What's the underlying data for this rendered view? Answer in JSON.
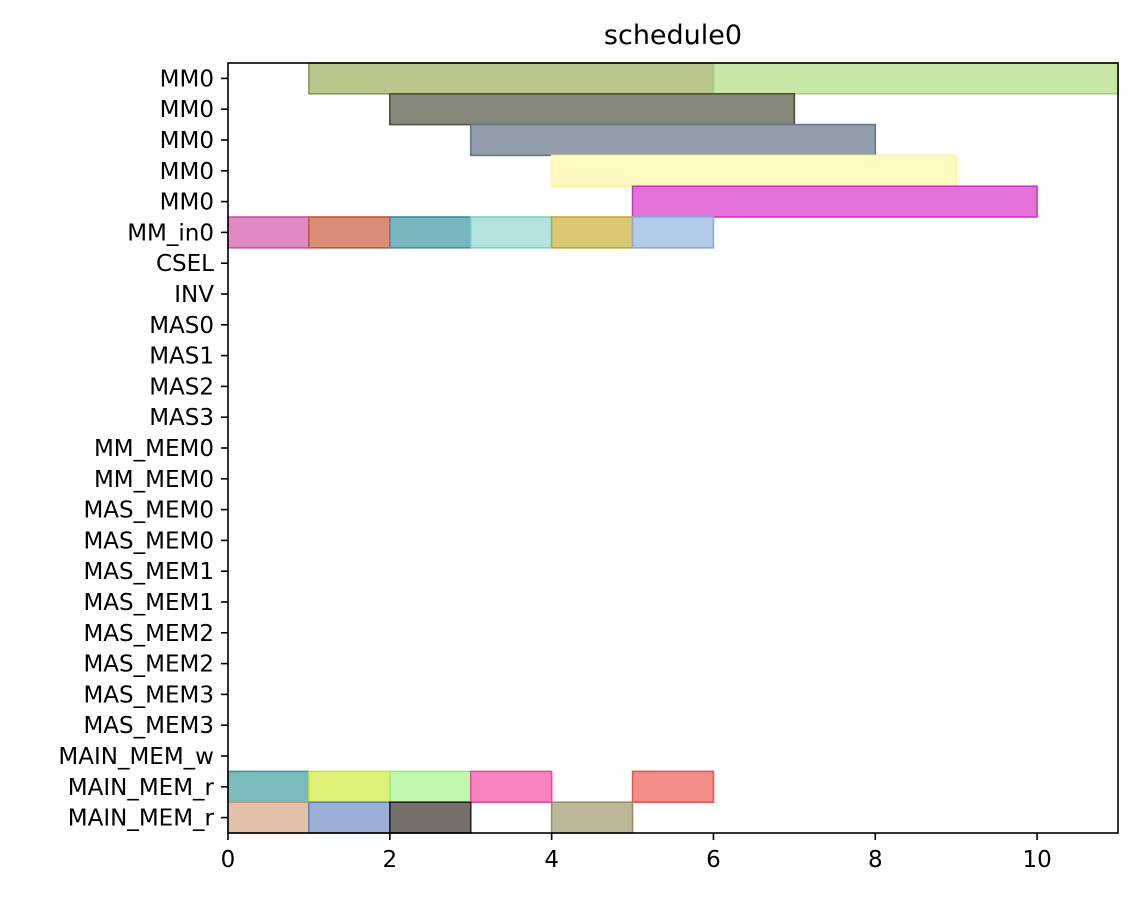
{
  "chart_data": {
    "type": "gantt",
    "title": "schedule0",
    "xlabel": "",
    "ylabel": "",
    "xlim": [
      0,
      11
    ],
    "x_ticks": [
      0,
      2,
      4,
      6,
      8,
      10
    ],
    "grid": false,
    "legend": "none",
    "rows": [
      "MM0",
      "MM0",
      "MM0",
      "MM0",
      "MM0",
      "MM_in0",
      "CSEL",
      "INV",
      "MAS0",
      "MAS1",
      "MAS2",
      "MAS3",
      "MM_MEM0",
      "MM_MEM0",
      "MAS_MEM0",
      "MAS_MEM0",
      "MAS_MEM1",
      "MAS_MEM1",
      "MAS_MEM2",
      "MAS_MEM2",
      "MAS_MEM3",
      "MAS_MEM3",
      "MAIN_MEM_w",
      "MAIN_MEM_r",
      "MAIN_MEM_r"
    ],
    "tasks": [
      {
        "row": 0,
        "start": 1,
        "end": 6,
        "color": "#b9c78c",
        "edge": "#8c9a58"
      },
      {
        "row": 0,
        "start": 6,
        "end": 11,
        "color": "#c8e6a5",
        "edge": "#a6d17e"
      },
      {
        "row": 1,
        "start": 2,
        "end": 7,
        "color": "#878779",
        "edge": "#50503f"
      },
      {
        "row": 2,
        "start": 3,
        "end": 8,
        "color": "#929eac",
        "edge": "#65788a"
      },
      {
        "row": 3,
        "start": 4,
        "end": 9,
        "color": "#fffac0",
        "edge": "#fff39c"
      },
      {
        "row": 4,
        "start": 5,
        "end": 10,
        "color": "#e272d8",
        "edge": "#cc38bf"
      },
      {
        "row": 5,
        "start": 0,
        "end": 1,
        "color": "#e189c3",
        "edge": "#cc4fa3"
      },
      {
        "row": 5,
        "start": 1,
        "end": 2,
        "color": "#da8e78",
        "edge": "#c45638"
      },
      {
        "row": 5,
        "start": 2,
        "end": 3,
        "color": "#78b6c0",
        "edge": "#3f8f9c"
      },
      {
        "row": 5,
        "start": 3,
        "end": 4,
        "color": "#b2e3de",
        "edge": "#7cd0c6"
      },
      {
        "row": 5,
        "start": 4,
        "end": 5,
        "color": "#dbc874",
        "edge": "#c4a73a"
      },
      {
        "row": 5,
        "start": 5,
        "end": 6,
        "color": "#b2cbe9",
        "edge": "#87acd8"
      },
      {
        "row": 23,
        "start": 0,
        "end": 1,
        "color": "#7abbbd",
        "edge": "#3f9799"
      },
      {
        "row": 23,
        "start": 1,
        "end": 2,
        "color": "#dff079",
        "edge": "#c6e33d"
      },
      {
        "row": 23,
        "start": 2,
        "end": 3,
        "color": "#bff8ad",
        "edge": "#95ee7b"
      },
      {
        "row": 23,
        "start": 3,
        "end": 4,
        "color": "#f783c1",
        "edge": "#ec4a9f"
      },
      {
        "row": 23,
        "start": 5,
        "end": 6,
        "color": "#f38f88",
        "edge": "#e6574d"
      },
      {
        "row": 24,
        "start": 0,
        "end": 1,
        "color": "#e1bfa9",
        "edge": "#c99778"
      },
      {
        "row": 24,
        "start": 1,
        "end": 2,
        "color": "#9cafd8",
        "edge": "#6681bd"
      },
      {
        "row": 24,
        "start": 2,
        "end": 3,
        "color": "#786e6b",
        "edge": "#222222"
      },
      {
        "row": 24,
        "start": 4,
        "end": 5,
        "color": "#bcb898",
        "edge": "#958f67"
      }
    ]
  }
}
